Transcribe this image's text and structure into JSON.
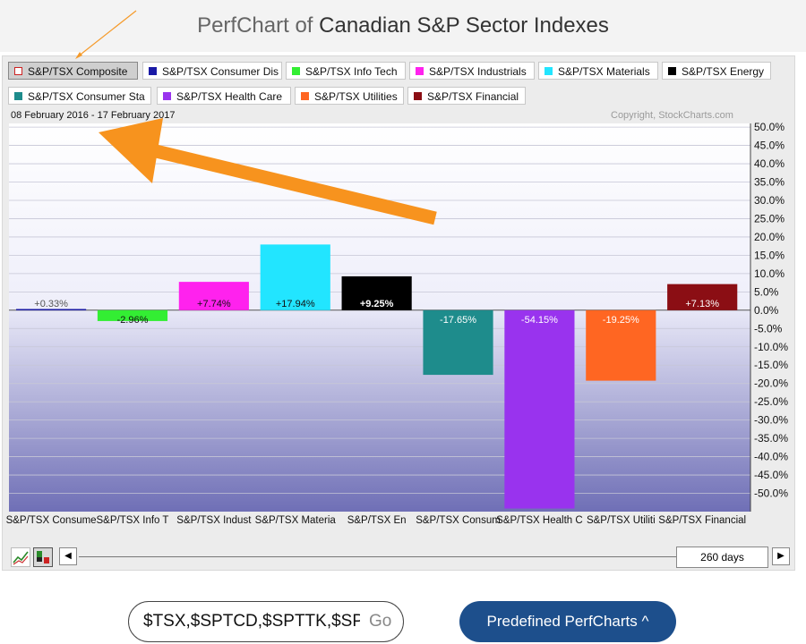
{
  "header": {
    "title_prefix": "PerfChart of ",
    "title_main": "Canadian S&P Sector Indexes"
  },
  "legend": [
    {
      "label": "S&P/TSX Composite",
      "color": "#cc2222",
      "active": true,
      "hollow": true
    },
    {
      "label": "S&P/TSX Consumer Dis",
      "color": "#1a1aa6"
    },
    {
      "label": "S&P/TSX Info Tech",
      "color": "#33ee33"
    },
    {
      "label": "S&P/TSX Industrials",
      "color": "#ff22ee"
    },
    {
      "label": "S&P/TSX Materials",
      "color": "#22e5ff"
    },
    {
      "label": "S&P/TSX Energy",
      "color": "#000000"
    },
    {
      "label": "S&P/TSX Consumer Sta",
      "color": "#1e8c8c"
    },
    {
      "label": "S&P/TSX Health Care",
      "color": "#9933ee"
    },
    {
      "label": "S&P/TSX Utilities",
      "color": "#ff6622"
    },
    {
      "label": "S&P/TSX Financial",
      "color": "#8b0e14"
    }
  ],
  "chart_meta": {
    "date_range": "08 February 2016 - 17 February 2017",
    "copyright": "Copyright, StockCharts.com"
  },
  "chart_data": {
    "type": "bar",
    "categories": [
      "S&P/TSX Consumer Dis",
      "S&P/TSX Info Tech",
      "S&P/TSX Industrials",
      "S&P/TSX Materials",
      "S&P/TSX Energy",
      "S&P/TSX Consumer Sta",
      "S&P/TSX Health Care",
      "S&P/TSX Utilities",
      "S&P/TSX Financial"
    ],
    "values": [
      0.33,
      -2.96,
      7.74,
      17.94,
      9.25,
      -17.65,
      -54.15,
      -19.25,
      7.13
    ],
    "data_labels": [
      "+0.33%",
      "-2.96%",
      "+7.74%",
      "+17.94%",
      "+9.25%",
      "-17.65%",
      "-54.15%",
      "-19.25%",
      "+7.13%"
    ],
    "colors": [
      "#1a1aa6",
      "#33ee33",
      "#ff22ee",
      "#22e5ff",
      "#000000",
      "#1e8c8c",
      "#9933ee",
      "#ff6622",
      "#8b0e14"
    ],
    "x_tick_labels": [
      "S&P/TSX Consume",
      "S&P/TSX Info T",
      "S&P/TSX Indust",
      "S&P/TSX Materia",
      "S&P/TSX En",
      "S&P/TSX Consum",
      "S&P/TSX Health C",
      "S&P/TSX Utiliti",
      "S&P/TSX Financial"
    ],
    "y_ticks": [
      50,
      45,
      40,
      35,
      30,
      25,
      20,
      15,
      10,
      5,
      0,
      -5,
      -10,
      -15,
      -20,
      -25,
      -30,
      -35,
      -40,
      -45,
      -50
    ],
    "y_tick_labels": [
      "50.0%",
      "45.0%",
      "40.0%",
      "35.0%",
      "30.0%",
      "25.0%",
      "20.0%",
      "15.0%",
      "10.0%",
      "5.0%",
      "0.0%",
      "-5.0%",
      "-10.0%",
      "-15.0%",
      "-20.0%",
      "-25.0%",
      "-30.0%",
      "-35.0%",
      "-40.0%",
      "-45.0%",
      "-50.0%"
    ],
    "ylim": [
      -55,
      51
    ],
    "grid": true,
    "xlabel": "",
    "ylabel": ""
  },
  "controls": {
    "period": "260 days",
    "scroll_left": "◀",
    "scroll_right": "▶",
    "symbols_value": "$TSX,$SPTCD,$SPTTK,$SP",
    "go_label": "Go",
    "predefined_label": "Predefined PerfCharts ^"
  }
}
